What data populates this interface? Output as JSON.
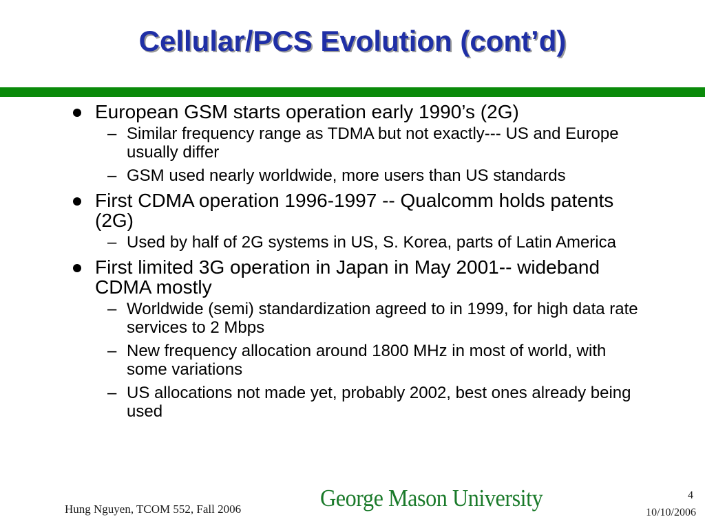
{
  "slide": {
    "title": "Cellular/PCS Evolution (cont’d)",
    "accent_color": "#1f2fa6",
    "bar_color": "#0a8a0a"
  },
  "bullets": [
    {
      "text": "European GSM starts operation early 1990’s (2G)",
      "subs": [
        "Similar frequency range as TDMA but not exactly--- US and Europe usually differ",
        "GSM used nearly worldwide, more users than US standards"
      ]
    },
    {
      "text": "First CDMA operation 1996-1997 -- Qualcomm holds patents (2G)",
      "subs": [
        "Used by half of 2G systems in US, S. Korea, parts of Latin America"
      ]
    },
    {
      "text": "First limited 3G operation in Japan in May 2001-- wideband CDMA mostly",
      "subs": [
        "Worldwide (semi) standardization agreed to in 1999, for high data rate services to 2 Mbps",
        "New frequency allocation around 1800 MHz in most of world, with some variations",
        "US allocations not made yet, probably 2002, best ones already being used"
      ]
    }
  ],
  "footer": {
    "author": "Hung Nguyen, TCOM 552, Fall 2006",
    "logo_text": "George Mason University",
    "page_number": "4",
    "date": "10/10/2006"
  }
}
